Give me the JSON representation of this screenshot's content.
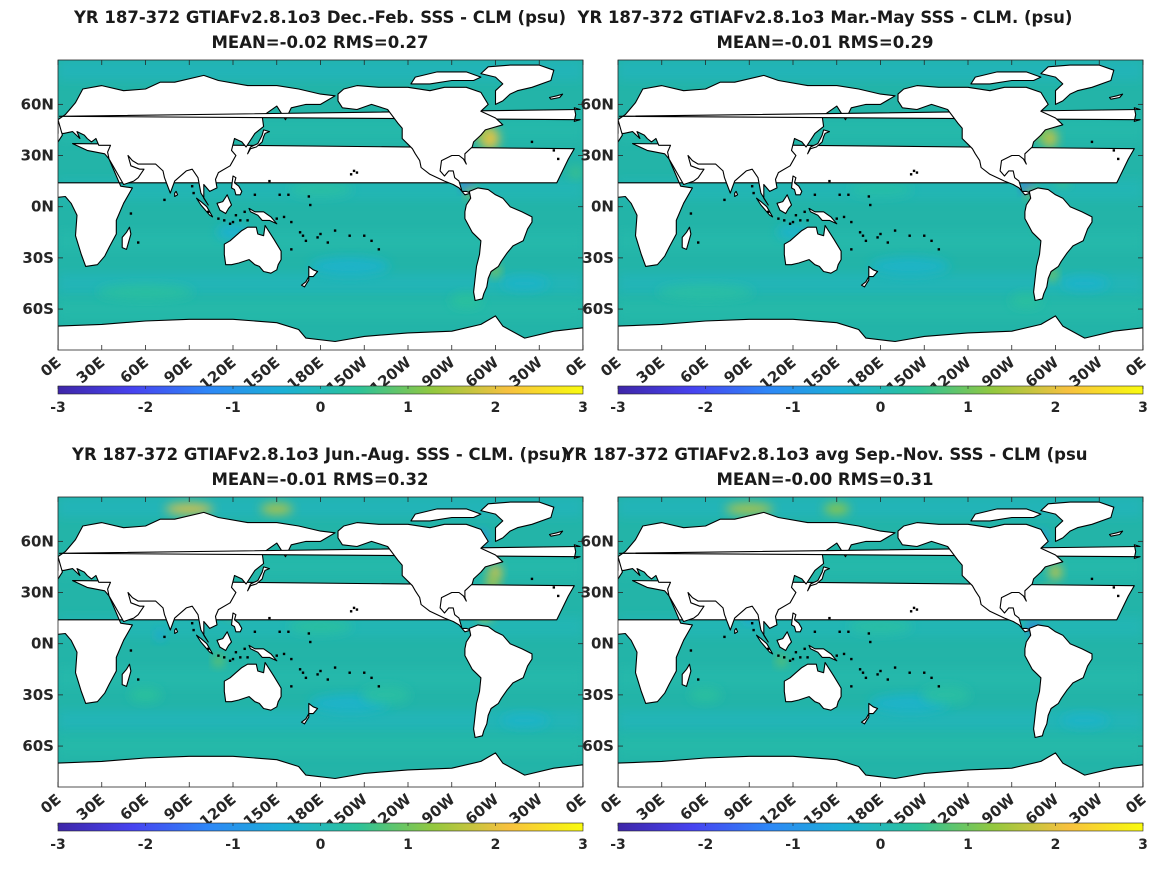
{
  "panels": [
    {
      "title": "YR 187-372 GTIAFv2.8.1o3  Dec.-Feb. SSS - CLM (psu)",
      "subtitle": "MEAN=-0.02   RMS=0.27",
      "variant": 0
    },
    {
      "title": "YR 187-372 GTIAFv2.8.1o3 Mar.-May SSS - CLM. (psu)",
      "subtitle": "MEAN=-0.01   RMS=0.29",
      "variant": 1
    },
    {
      "title": "YR 187-372 GTIAFv2.8.1o3 Jun.-Aug. SSS - CLM. (psu)",
      "subtitle": "MEAN=-0.01   RMS=0.32",
      "variant": 2
    },
    {
      "title": "YR 187-372 GTIAFv2.8.1o3 avg Sep.-Nov. SSS - CLM (psu",
      "subtitle": "MEAN=-0.00   RMS=0.31",
      "variant": 3
    }
  ],
  "chart_data": {
    "type": "heatmap",
    "x_ticks": [
      "0E",
      "30E",
      "60E",
      "90E",
      "120E",
      "150E",
      "180E",
      "150W",
      "120W",
      "90W",
      "60W",
      "30W",
      "0E"
    ],
    "y_ticks": [
      "60N",
      "30N",
      "0N",
      "30S",
      "60S"
    ],
    "y_tick_values": [
      60,
      30,
      0,
      -30,
      -60
    ],
    "xlim": [
      0,
      360
    ],
    "ylim": [
      -90,
      90
    ],
    "colorbar": {
      "ticks": [
        "-3",
        "-2",
        "-1",
        "0",
        "1",
        "2",
        "3"
      ],
      "range": [
        -3,
        3
      ],
      "colormap": [
        "#3e26a8",
        "#4743f0",
        "#2e87f7",
        "#1bb0d5",
        "#2cc29a",
        "#93c83f",
        "#f7c13f",
        "#f9fb0e"
      ]
    },
    "ocean_color": "#23b4a8",
    "land_color": "#ffffff",
    "series": [
      {
        "name": "Dec.-Feb.",
        "mean": -0.02,
        "rms": 0.27
      },
      {
        "name": "Mar.-May",
        "mean": -0.01,
        "rms": 0.29
      },
      {
        "name": "Jun.-Aug.",
        "mean": -0.01,
        "rms": 0.32
      },
      {
        "name": "Sep.-Nov.",
        "mean": 0.0,
        "rms": 0.31
      }
    ]
  }
}
